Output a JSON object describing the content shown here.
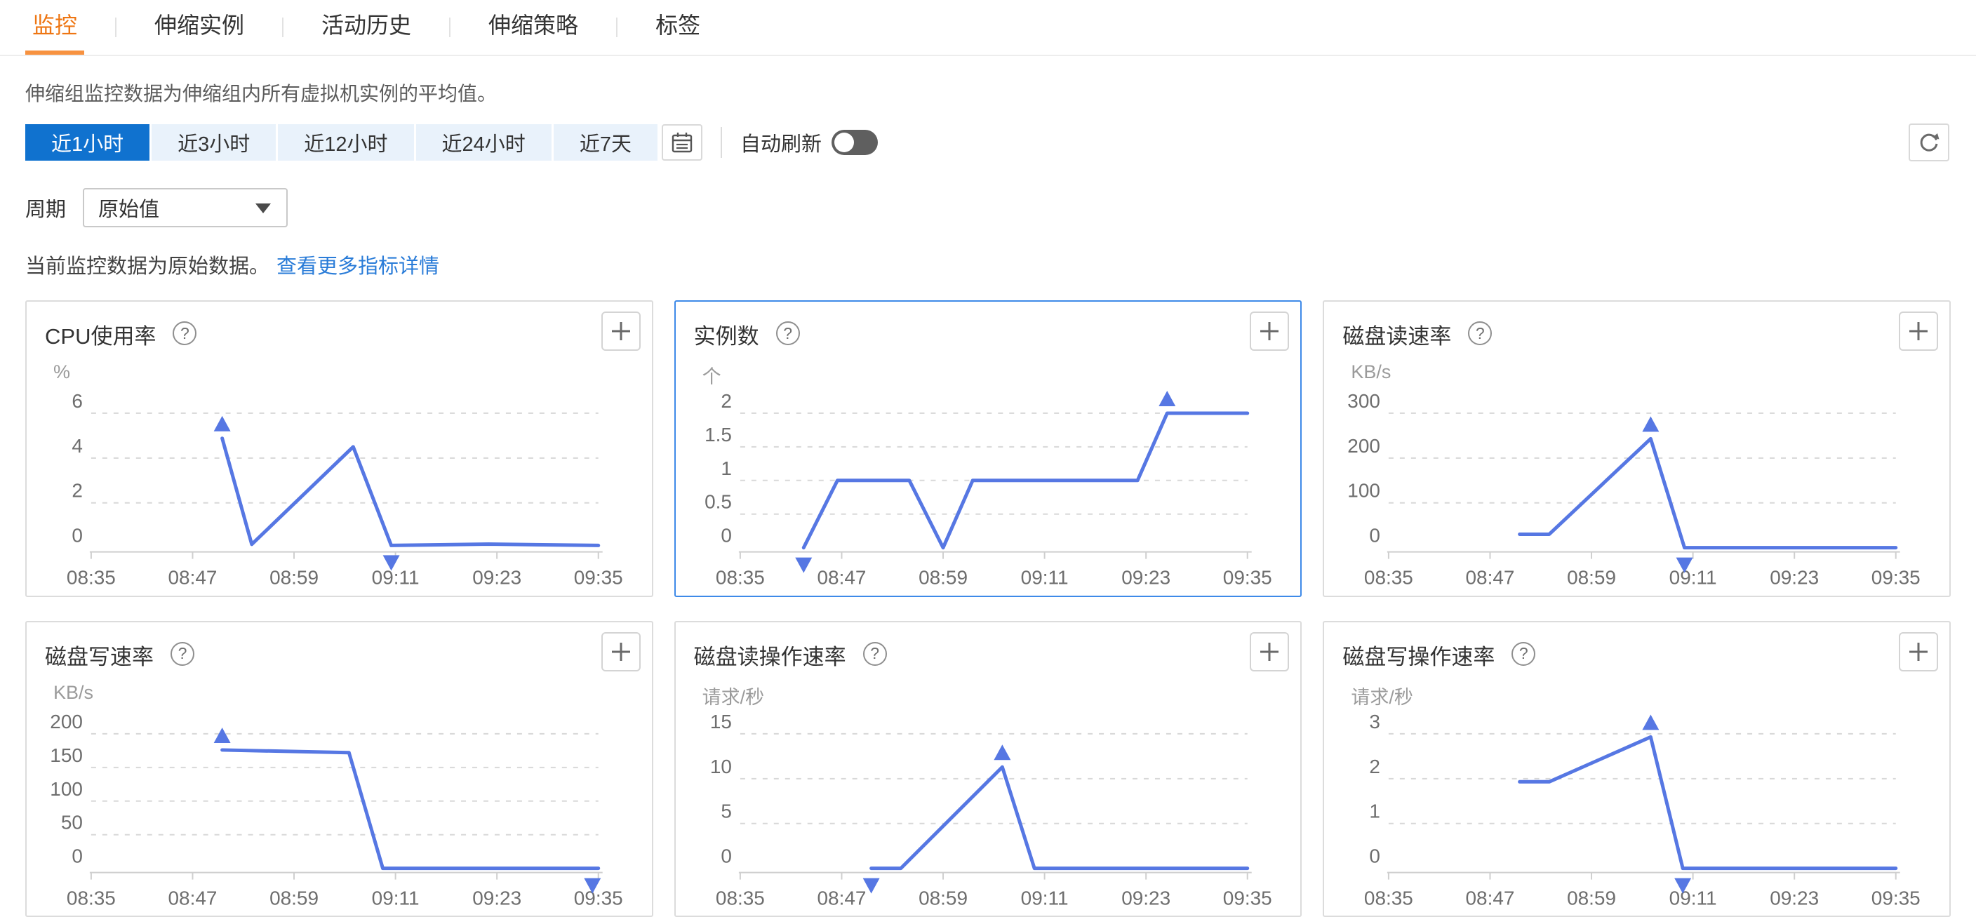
{
  "tabs": {
    "items": [
      {
        "label": "监控",
        "active": true
      },
      {
        "label": "伸缩实例",
        "active": false
      },
      {
        "label": "活动历史",
        "active": false
      },
      {
        "label": "伸缩策略",
        "active": false
      },
      {
        "label": "标签",
        "active": false
      }
    ]
  },
  "note": "伸缩组监控数据为伸缩组内所有虚拟机实例的平均值。",
  "toolbar": {
    "ranges": [
      {
        "label": "近1小时",
        "selected": true
      },
      {
        "label": "近3小时",
        "selected": false
      },
      {
        "label": "近12小时",
        "selected": false
      },
      {
        "label": "近24小时",
        "selected": false
      },
      {
        "label": "近7天",
        "selected": false
      }
    ],
    "calendar_icon": "calendar-icon",
    "auto_refresh_label": "自动刷新",
    "auto_refresh_on": false,
    "refresh_icon": "refresh-icon"
  },
  "period": {
    "label": "周期",
    "value": "原始值",
    "caret_icon": "caret-down-icon"
  },
  "info": {
    "text": "当前监控数据为原始数据。",
    "link": "查看更多指标详情"
  },
  "colors": {
    "tab_active": "#ee7613",
    "button_selected": "#1072cf",
    "button_bg": "#e9f2fb",
    "line": "#5677e3",
    "link": "#2a7cd8",
    "selected_card_border": "#3e8ae8"
  },
  "chart_data": [
    {
      "type": "line",
      "title": "CPU使用率",
      "unit": "%",
      "selected": false,
      "add_button": false,
      "help_icon": "help-icon",
      "x_ticks": [
        "08:35",
        "08:47",
        "08:59",
        "09:11",
        "09:23",
        "09:35"
      ],
      "x_span_minutes": 60,
      "y_ticks": [
        0,
        2,
        4,
        6
      ],
      "y_max": 6,
      "grid": "dashed",
      "series": [
        {
          "name": "CPU使用率",
          "points": [
            [
              15.5,
              4.88
            ],
            [
              19,
              0.15
            ],
            [
              31,
              4.5
            ],
            [
              35.5,
              0.1
            ],
            [
              47,
              0.16
            ],
            [
              60,
              0.1
            ]
          ]
        }
      ],
      "markers": [
        {
          "kind": "max",
          "t": 15.5,
          "v": 4.88
        },
        {
          "kind": "min",
          "t": 35.5,
          "v": 0.1
        }
      ]
    },
    {
      "type": "line",
      "title": "实例数",
      "unit": "个",
      "selected": true,
      "add_button": true,
      "help_icon": "help-icon",
      "x_ticks": [
        "08:35",
        "08:47",
        "08:59",
        "09:11",
        "09:23",
        "09:35"
      ],
      "x_span_minutes": 60,
      "y_ticks": [
        0,
        0.5,
        1,
        1.5,
        2
      ],
      "y_max": 2,
      "grid": "dashed",
      "series": [
        {
          "name": "实例数",
          "points": [
            [
              7.5,
              0
            ],
            [
              11.5,
              1
            ],
            [
              20,
              1
            ],
            [
              24,
              0
            ],
            [
              27.5,
              1
            ],
            [
              47,
              1
            ],
            [
              50.5,
              2
            ],
            [
              60,
              2
            ]
          ]
        }
      ],
      "markers": [
        {
          "kind": "min",
          "t": 7.5,
          "v": 0
        },
        {
          "kind": "max",
          "t": 50.5,
          "v": 2
        }
      ]
    },
    {
      "type": "line",
      "title": "磁盘读速率",
      "unit": "KB/s",
      "selected": false,
      "add_button": false,
      "help_icon": "help-icon",
      "x_ticks": [
        "08:35",
        "08:47",
        "08:59",
        "09:11",
        "09:23",
        "09:35"
      ],
      "x_span_minutes": 60,
      "y_ticks": [
        0,
        100,
        200,
        300
      ],
      "y_max": 300,
      "grid": "dashed",
      "series": [
        {
          "name": "磁盘读速率",
          "points": [
            [
              15.5,
              30
            ],
            [
              19,
              30
            ],
            [
              31,
              243
            ],
            [
              35,
              0
            ],
            [
              60,
              0
            ]
          ]
        }
      ],
      "markers": [
        {
          "kind": "max",
          "t": 31,
          "v": 243
        },
        {
          "kind": "min",
          "t": 35,
          "v": 0
        }
      ]
    },
    {
      "type": "line",
      "title": "磁盘写速率",
      "unit": "KB/s",
      "selected": false,
      "add_button": false,
      "help_icon": "help-icon",
      "x_ticks": [
        "08:35",
        "08:47",
        "08:59",
        "09:11",
        "09:23",
        "09:35"
      ],
      "x_span_minutes": 60,
      "y_ticks": [
        0,
        50,
        100,
        150,
        200
      ],
      "y_max": 200,
      "grid": "dashed",
      "series": [
        {
          "name": "磁盘写速率",
          "points": [
            [
              15.5,
              176
            ],
            [
              30.5,
              172
            ],
            [
              34.5,
              0
            ],
            [
              60,
              0
            ]
          ]
        }
      ],
      "markers": [
        {
          "kind": "max",
          "t": 15.5,
          "v": 176
        },
        {
          "kind": "min",
          "t": 59.3,
          "v": 0
        }
      ]
    },
    {
      "type": "line",
      "title": "磁盘读操作速率",
      "unit": "请求/秒",
      "selected": false,
      "add_button": false,
      "help_icon": "help-icon",
      "x_ticks": [
        "08:35",
        "08:47",
        "08:59",
        "09:11",
        "09:23",
        "09:35"
      ],
      "x_span_minutes": 60,
      "y_ticks": [
        0,
        5,
        10,
        15
      ],
      "y_max": 15,
      "grid": "dashed",
      "series": [
        {
          "name": "磁盘读操作速率",
          "points": [
            [
              15.5,
              0
            ],
            [
              19,
              0
            ],
            [
              31,
              11.3
            ],
            [
              34.8,
              0
            ],
            [
              60,
              0
            ]
          ]
        }
      ],
      "markers": [
        {
          "kind": "min",
          "t": 15.5,
          "v": 0
        },
        {
          "kind": "max",
          "t": 31,
          "v": 11.3
        }
      ]
    },
    {
      "type": "line",
      "title": "磁盘写操作速率",
      "unit": "请求/秒",
      "selected": false,
      "add_button": false,
      "help_icon": "help-icon",
      "x_ticks": [
        "08:35",
        "08:47",
        "08:59",
        "09:11",
        "09:23",
        "09:35"
      ],
      "x_span_minutes": 60,
      "y_ticks": [
        0,
        1,
        2,
        3
      ],
      "y_max": 3,
      "grid": "dashed",
      "series": [
        {
          "name": "磁盘写操作速率",
          "points": [
            [
              15.5,
              1.93
            ],
            [
              19,
              1.93
            ],
            [
              31,
              2.93
            ],
            [
              34.8,
              0
            ],
            [
              60,
              0
            ]
          ]
        }
      ],
      "markers": [
        {
          "kind": "max",
          "t": 31,
          "v": 2.93
        },
        {
          "kind": "min",
          "t": 34.8,
          "v": 0
        }
      ]
    }
  ]
}
